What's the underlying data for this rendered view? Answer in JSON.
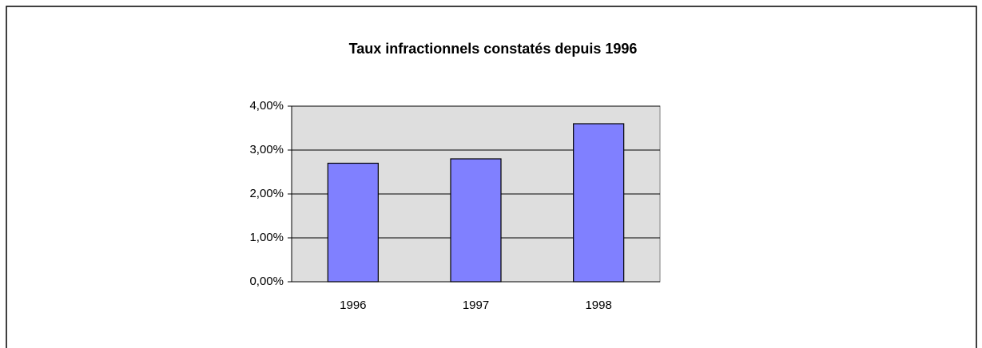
{
  "chart_data": {
    "type": "bar",
    "title": "Taux infractionnels constatés depuis 1996",
    "categories": [
      "1996",
      "1997",
      "1998"
    ],
    "values": [
      2.7,
      2.8,
      3.6
    ],
    "color": "#8080ff",
    "ylim": [
      0,
      4
    ],
    "yticks": [
      {
        "value": 0,
        "label": "0,00%"
      },
      {
        "value": 1,
        "label": "1,00%"
      },
      {
        "value": 2,
        "label": "2,00%"
      },
      {
        "value": 3,
        "label": "3,00%"
      },
      {
        "value": 4,
        "label": "4,00%"
      }
    ],
    "grid": true
  }
}
